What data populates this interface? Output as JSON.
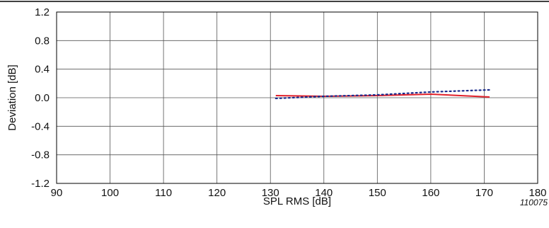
{
  "chart_data": {
    "type": "line",
    "xlabel": "SPL RMS [dB]",
    "ylabel": "Deviation [dB]",
    "xlim": [
      90,
      180
    ],
    "ylim": [
      -1.2,
      1.2
    ],
    "x_ticks": [
      "90",
      "100",
      "110",
      "120",
      "130",
      "140",
      "150",
      "160",
      "170",
      "180"
    ],
    "y_ticks": [
      "1.2",
      "0.8",
      "0.4",
      "0.0",
      "-0.4",
      "-0.8",
      "-1.2"
    ],
    "grid": true,
    "figure_id": "110075",
    "series": [
      {
        "color": "#e0202a",
        "style": "solid",
        "x": [
          131,
          140,
          150,
          160,
          171
        ],
        "y": [
          0.03,
          0.02,
          0.03,
          0.05,
          0.01
        ]
      },
      {
        "color": "#1a2a8c",
        "style": "dotted",
        "x": [
          131,
          140,
          150,
          160,
          171
        ],
        "y": [
          -0.01,
          0.02,
          0.04,
          0.08,
          0.11
        ]
      }
    ]
  }
}
